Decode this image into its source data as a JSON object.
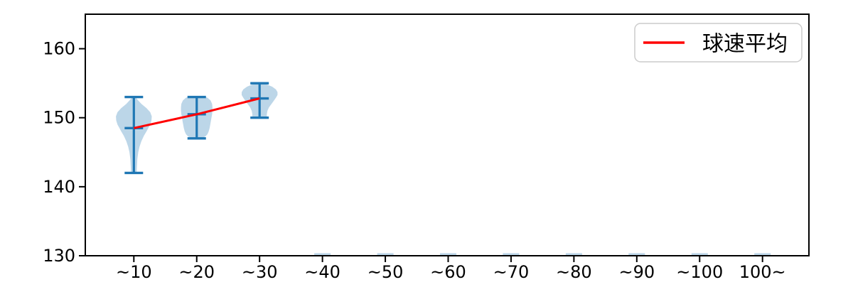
{
  "chart_data": {
    "type": "violin",
    "title": "",
    "xlabel": "",
    "ylabel": "",
    "categories": [
      "~10",
      "~20",
      "~30",
      "~40",
      "~50",
      "~60",
      "~70",
      "~80",
      "~90",
      "~100",
      "100~"
    ],
    "yticks": [
      130,
      140,
      150,
      160
    ],
    "ylim": [
      130,
      165
    ],
    "grid": false,
    "legend": {
      "label": "球速平均",
      "position": "upper right"
    },
    "violins": [
      {
        "category": "~10",
        "min": 142,
        "max": 153,
        "mean": 148.5,
        "shape": [
          [
            153.1,
            0.02
          ],
          [
            152.6,
            0.06
          ],
          [
            152.0,
            0.12
          ],
          [
            151.4,
            0.2
          ],
          [
            150.8,
            0.26
          ],
          [
            150.2,
            0.285
          ],
          [
            149.6,
            0.28
          ],
          [
            149.0,
            0.26
          ],
          [
            148.5,
            0.23
          ],
          [
            148.0,
            0.2
          ],
          [
            147.4,
            0.16
          ],
          [
            146.6,
            0.12
          ],
          [
            145.8,
            0.09
          ],
          [
            145.0,
            0.07
          ],
          [
            144.0,
            0.055
          ],
          [
            143.0,
            0.05
          ],
          [
            142.2,
            0.045
          ],
          [
            141.9,
            0.03
          ]
        ]
      },
      {
        "category": "~20",
        "min": 147,
        "max": 153,
        "mean": 150.5,
        "shape": [
          [
            153.1,
            0.1
          ],
          [
            152.9,
            0.17
          ],
          [
            152.5,
            0.22
          ],
          [
            152.0,
            0.245
          ],
          [
            151.5,
            0.25
          ],
          [
            151.0,
            0.25
          ],
          [
            150.5,
            0.245
          ],
          [
            150.0,
            0.235
          ],
          [
            149.5,
            0.225
          ],
          [
            149.0,
            0.215
          ],
          [
            148.5,
            0.205
          ],
          [
            148.0,
            0.19
          ],
          [
            147.6,
            0.17
          ],
          [
            147.3,
            0.14
          ],
          [
            147.05,
            0.09
          ],
          [
            146.95,
            0.04
          ]
        ]
      },
      {
        "category": "~30",
        "min": 150,
        "max": 155,
        "mean": 152.8,
        "shape": [
          [
            155.05,
            0.05
          ],
          [
            154.8,
            0.12
          ],
          [
            154.5,
            0.2
          ],
          [
            154.1,
            0.26
          ],
          [
            153.7,
            0.285
          ],
          [
            153.3,
            0.285
          ],
          [
            152.9,
            0.26
          ],
          [
            152.5,
            0.23
          ],
          [
            152.0,
            0.19
          ],
          [
            151.5,
            0.15
          ],
          [
            151.0,
            0.125
          ],
          [
            150.5,
            0.115
          ],
          [
            150.2,
            0.115
          ],
          [
            150.0,
            0.1
          ],
          [
            149.9,
            0.05
          ]
        ]
      }
    ],
    "baseline_marks": {
      "categories": [
        "~40",
        "~50",
        "~60",
        "~70",
        "~80",
        "~90",
        "~100",
        "100~"
      ],
      "value": 130
    },
    "line_series": {
      "name": "球速平均",
      "categories": [
        "~10",
        "~20",
        "~30"
      ],
      "values": [
        148.5,
        150.5,
        152.8
      ]
    },
    "colors": {
      "violin_fill": "#bcd6e8",
      "violin_edge": "#1f77b4",
      "mean_line": "#ff0000",
      "axis": "#000000",
      "legend_border": "#cccccc",
      "background": "#ffffff"
    }
  }
}
